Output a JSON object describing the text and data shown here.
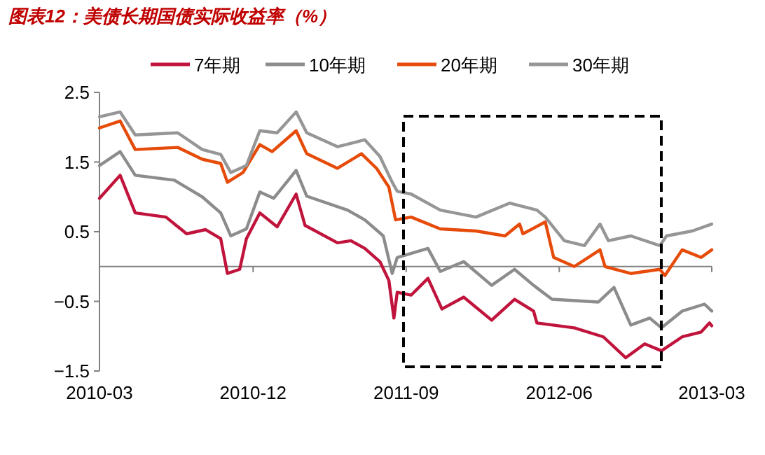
{
  "chart_data": {
    "type": "line",
    "title": "图表12：美债长期国债实际收益率（%）",
    "legend": "top",
    "grid": false,
    "line_style": "solid",
    "xlim": [
      "2010-03-01",
      "2013-03-01"
    ],
    "xticks": [
      {
        "value": "2010-03-01",
        "label": "2010-03"
      },
      {
        "value": "2010-12-01",
        "label": "2010-12"
      },
      {
        "value": "2011-09-01",
        "label": "2011-09"
      },
      {
        "value": "2012-06-01",
        "label": "2012-06"
      },
      {
        "value": "2013-03-01",
        "label": "2013-03"
      }
    ],
    "ylim": [
      -1.5,
      2.5
    ],
    "yticks": [
      {
        "value": -1.5,
        "label": "−1.5"
      },
      {
        "value": -0.5,
        "label": "−0.5"
      },
      0.5,
      1.5,
      2.5
    ],
    "ref_lines": [
      {
        "axis": "y",
        "value": 0,
        "color": "#808080"
      }
    ],
    "series": [
      {
        "name": "7年期",
        "color": "#c0143c",
        "x": [
          "2010-03-01",
          "2010-04-07",
          "2010-05-04",
          "2010-06-28",
          "2010-08-04",
          "2010-09-07",
          "2010-10-04",
          "2010-10-16",
          "2010-11-07",
          "2010-11-19",
          "2010-12-13",
          "2011-01-13",
          "2011-02-16",
          "2011-03-04",
          "2011-05-01",
          "2011-05-25",
          "2011-06-19",
          "2011-07-16",
          "2011-08-01",
          "2011-08-10",
          "2011-08-16",
          "2011-09-10",
          "2011-10-10",
          "2011-11-04",
          "2011-12-13",
          "2012-02-01",
          "2012-03-13",
          "2012-04-16",
          "2012-04-22",
          "2012-06-28",
          "2012-08-19",
          "2012-09-28",
          "2012-11-01",
          "2012-12-01",
          "2013-01-07",
          "2013-02-10",
          "2013-02-25",
          "2013-03-01"
        ],
        "values": [
          0.98,
          1.31,
          0.77,
          0.71,
          0.47,
          0.53,
          0.4,
          -0.1,
          -0.04,
          0.4,
          0.77,
          0.57,
          1.04,
          0.59,
          0.34,
          0.37,
          0.26,
          0.07,
          -0.2,
          -0.74,
          -0.37,
          -0.41,
          -0.17,
          -0.61,
          -0.44,
          -0.77,
          -0.47,
          -0.64,
          -0.81,
          -0.88,
          -1.01,
          -1.31,
          -1.11,
          -1.21,
          -1.01,
          -0.94,
          -0.81,
          -0.85
        ]
      },
      {
        "name": "10年期",
        "color": "#8c8c8c",
        "x": [
          "2010-03-01",
          "2010-04-07",
          "2010-05-04",
          "2010-07-13",
          "2010-09-01",
          "2010-10-04",
          "2010-10-22",
          "2010-11-19",
          "2010-12-13",
          "2011-01-07",
          "2011-02-16",
          "2011-03-07",
          "2011-05-19",
          "2011-06-19",
          "2011-07-22",
          "2011-08-07",
          "2011-08-16",
          "2011-10-10",
          "2011-11-01",
          "2011-12-13",
          "2012-02-01",
          "2012-03-13",
          "2012-04-16",
          "2012-05-19",
          "2012-08-10",
          "2012-09-07",
          "2012-10-07",
          "2012-11-10",
          "2012-12-01",
          "2013-01-07",
          "2013-02-16",
          "2013-03-01"
        ],
        "values": [
          1.45,
          1.65,
          1.31,
          1.24,
          1.0,
          0.77,
          0.44,
          0.54,
          1.07,
          0.98,
          1.38,
          1.01,
          0.81,
          0.67,
          0.44,
          -0.1,
          0.13,
          0.26,
          -0.07,
          0.07,
          -0.27,
          -0.04,
          -0.27,
          -0.47,
          -0.51,
          -0.3,
          -0.84,
          -0.74,
          -0.88,
          -0.64,
          -0.54,
          -0.64
        ]
      },
      {
        "name": "20年期",
        "color": "#e64b0a",
        "x": [
          "2010-03-01",
          "2010-04-07",
          "2010-05-04",
          "2010-07-19",
          "2010-09-01",
          "2010-10-04",
          "2010-10-16",
          "2010-11-13",
          "2010-12-13",
          "2011-01-04",
          "2011-02-16",
          "2011-03-07",
          "2011-05-01",
          "2011-06-13",
          "2011-07-10",
          "2011-08-01",
          "2011-08-13",
          "2011-09-10",
          "2011-11-01",
          "2012-01-04",
          "2012-02-25",
          "2012-03-22",
          "2012-03-28",
          "2012-05-07",
          "2012-05-22",
          "2012-06-28",
          "2012-08-13",
          "2012-08-22",
          "2012-10-07",
          "2012-11-28",
          "2012-12-07",
          "2013-01-07",
          "2013-02-10",
          "2013-03-01"
        ],
        "values": [
          1.99,
          2.09,
          1.68,
          1.71,
          1.54,
          1.48,
          1.21,
          1.35,
          1.75,
          1.65,
          1.95,
          1.62,
          1.41,
          1.62,
          1.41,
          1.14,
          0.67,
          0.71,
          0.54,
          0.51,
          0.44,
          0.61,
          0.47,
          0.64,
          0.13,
          0.0,
          0.24,
          0.0,
          -0.1,
          -0.04,
          -0.13,
          0.24,
          0.13,
          0.24
        ]
      },
      {
        "name": "30年期",
        "color": "#969696",
        "x": [
          "2010-03-01",
          "2010-04-07",
          "2010-05-04",
          "2010-07-19",
          "2010-09-01",
          "2010-10-04",
          "2010-10-22",
          "2010-11-19",
          "2010-12-13",
          "2011-01-13",
          "2011-02-16",
          "2011-03-07",
          "2011-05-01",
          "2011-06-19",
          "2011-07-16",
          "2011-08-07",
          "2011-08-16",
          "2011-09-10",
          "2011-11-01",
          "2012-01-04",
          "2012-03-04",
          "2012-04-22",
          "2012-05-07",
          "2012-06-10",
          "2012-07-16",
          "2012-08-13",
          "2012-08-28",
          "2012-10-07",
          "2012-11-28",
          "2012-12-10",
          "2013-01-25",
          "2013-03-01"
        ],
        "values": [
          2.15,
          2.22,
          1.89,
          1.92,
          1.68,
          1.61,
          1.35,
          1.45,
          1.95,
          1.92,
          2.22,
          1.92,
          1.72,
          1.82,
          1.58,
          1.21,
          1.08,
          1.04,
          0.81,
          0.71,
          0.91,
          0.81,
          0.71,
          0.37,
          0.3,
          0.61,
          0.37,
          0.44,
          0.3,
          0.44,
          0.51,
          0.61
        ]
      }
    ]
  }
}
